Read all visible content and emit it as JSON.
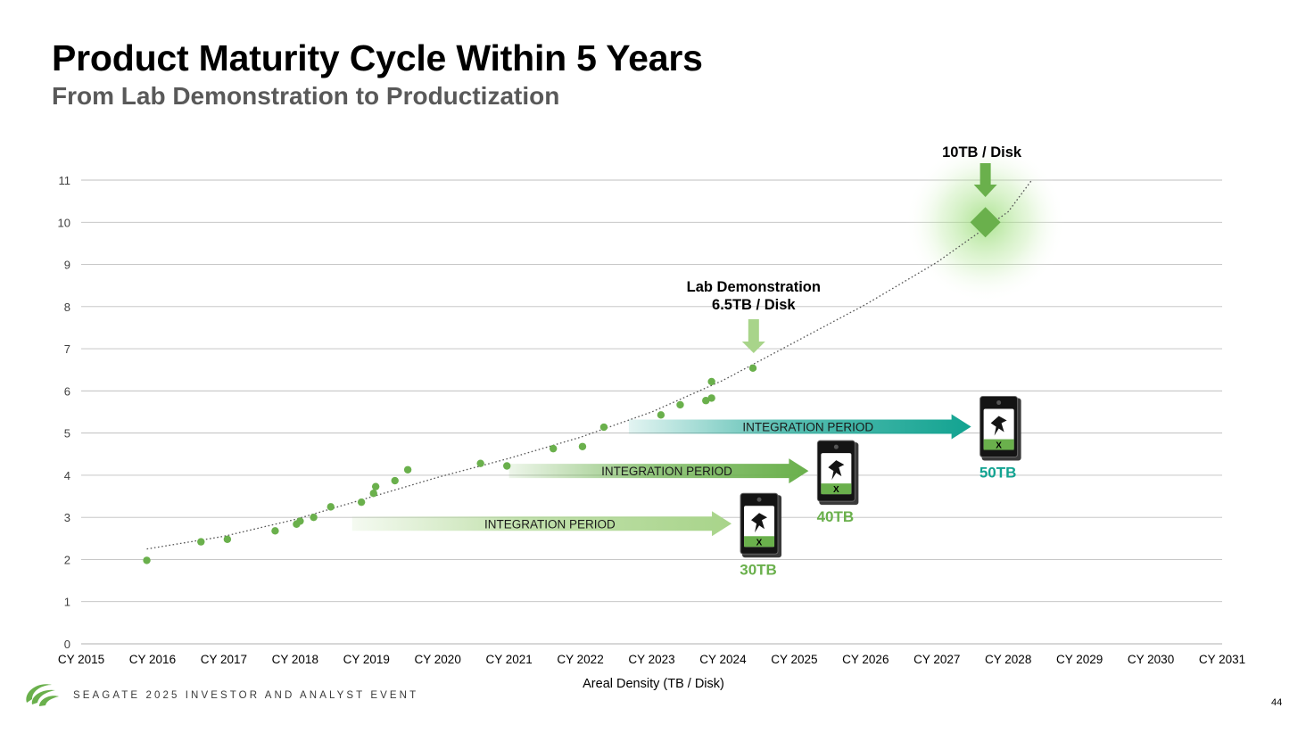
{
  "header": {
    "title": "Product Maturity Cycle Within 5 Years",
    "subtitle": "From Lab Demonstration to Productization"
  },
  "footer": {
    "event": "SEAGATE 2025 INVESTOR AND ANALYST EVENT",
    "page_number": "44",
    "logo_icon": "seagate-logo-icon"
  },
  "colors": {
    "green": "#6ab04c",
    "light_green": "#a8d48a",
    "teal": "#12a391",
    "grid": "#bfbfbf"
  },
  "chart_data": {
    "type": "scatter",
    "title": "",
    "xlabel": "Areal Density (TB / Disk)",
    "ylabel": "",
    "x_categories": [
      "CY 2015",
      "CY 2016",
      "CY 2017",
      "CY 2018",
      "CY 2019",
      "CY 2020",
      "CY 2021",
      "CY 2022",
      "CY 2023",
      "CY 2024",
      "CY 2025",
      "CY 2026",
      "CY 2027",
      "CY 2028",
      "CY 2029",
      "CY 2030",
      "CY 2031"
    ],
    "xlim": [
      2015,
      2031
    ],
    "ylim": [
      0,
      11
    ],
    "yticks": [
      0,
      1,
      2,
      3,
      4,
      5,
      6,
      7,
      8,
      9,
      10,
      11
    ],
    "grid": true,
    "series": [
      {
        "points": [
          [
            2015.92,
            1.98
          ],
          [
            2016.68,
            2.42
          ],
          [
            2017.05,
            2.48
          ],
          [
            2017.72,
            2.68
          ],
          [
            2018.02,
            2.84
          ],
          [
            2018.07,
            2.91
          ],
          [
            2018.26,
            3.0
          ],
          [
            2018.5,
            3.25
          ],
          [
            2018.93,
            3.36
          ],
          [
            2019.1,
            3.57
          ],
          [
            2019.13,
            3.73
          ],
          [
            2019.4,
            3.87
          ],
          [
            2019.58,
            4.13
          ],
          [
            2020.6,
            4.28
          ],
          [
            2020.97,
            4.22
          ],
          [
            2021.62,
            4.63
          ],
          [
            2022.03,
            4.68
          ],
          [
            2022.33,
            5.14
          ],
          [
            2023.13,
            5.43
          ],
          [
            2023.4,
            5.67
          ],
          [
            2023.76,
            5.77
          ],
          [
            2023.84,
            5.83
          ],
          [
            2023.84,
            6.22
          ],
          [
            2024.42,
            6.54
          ]
        ]
      }
    ],
    "trendline": [
      [
        2015.92,
        2.25
      ],
      [
        2017,
        2.55
      ],
      [
        2018,
        2.95
      ],
      [
        2019,
        3.45
      ],
      [
        2020,
        3.95
      ],
      [
        2021,
        4.4
      ],
      [
        2022,
        4.9
      ],
      [
        2023,
        5.5
      ],
      [
        2024,
        6.25
      ],
      [
        2025,
        7.15
      ],
      [
        2026,
        8.05
      ],
      [
        2027,
        9.05
      ],
      [
        2028,
        10.25
      ],
      [
        2028.33,
        11.0
      ]
    ],
    "highlight_point": {
      "x": 2027.68,
      "y": 10,
      "label": "10TB / Disk"
    },
    "annotations": [
      {
        "lines": [
          "Lab Demonstration",
          "6.5TB / Disk"
        ],
        "x": 2024.43,
        "y": 6.55
      }
    ],
    "integration_periods": [
      {
        "label": "INTEGRATION PERIOD",
        "start": 2018.8,
        "end": 2024.12,
        "y": 2.85,
        "product": "30TB",
        "color": "light_green"
      },
      {
        "label": "INTEGRATION PERIOD",
        "start": 2021.0,
        "end": 2025.2,
        "y": 4.1,
        "product": "40TB",
        "color": "green"
      },
      {
        "label": "INTEGRATION PERIOD",
        "start": 2022.68,
        "end": 2027.48,
        "y": 5.15,
        "product": "50TB",
        "color": "teal"
      }
    ],
    "drive_icon": "hard-drive-icon",
    "drive_label": "X"
  }
}
